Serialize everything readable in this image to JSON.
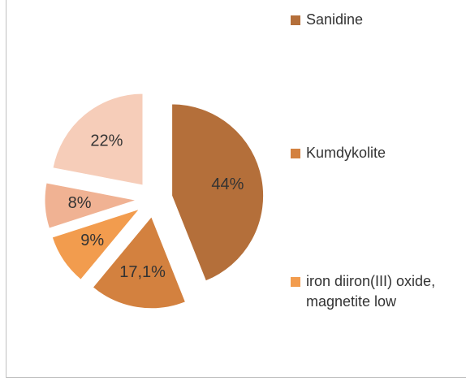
{
  "chart_data": {
    "type": "pie",
    "categories": [
      "Sanidine",
      "Kumdykolite",
      "iron diiron(III) oxide, magnetite low",
      null,
      null
    ],
    "values": [
      44,
      17.1,
      9,
      8,
      22
    ],
    "value_labels": [
      "44%",
      "17,1%",
      "9%",
      "8%",
      "22%"
    ],
    "colors": [
      "#b46f3a",
      "#d3813f",
      "#f29c4e",
      "#f0b293",
      "#f6cdb9"
    ]
  }
}
